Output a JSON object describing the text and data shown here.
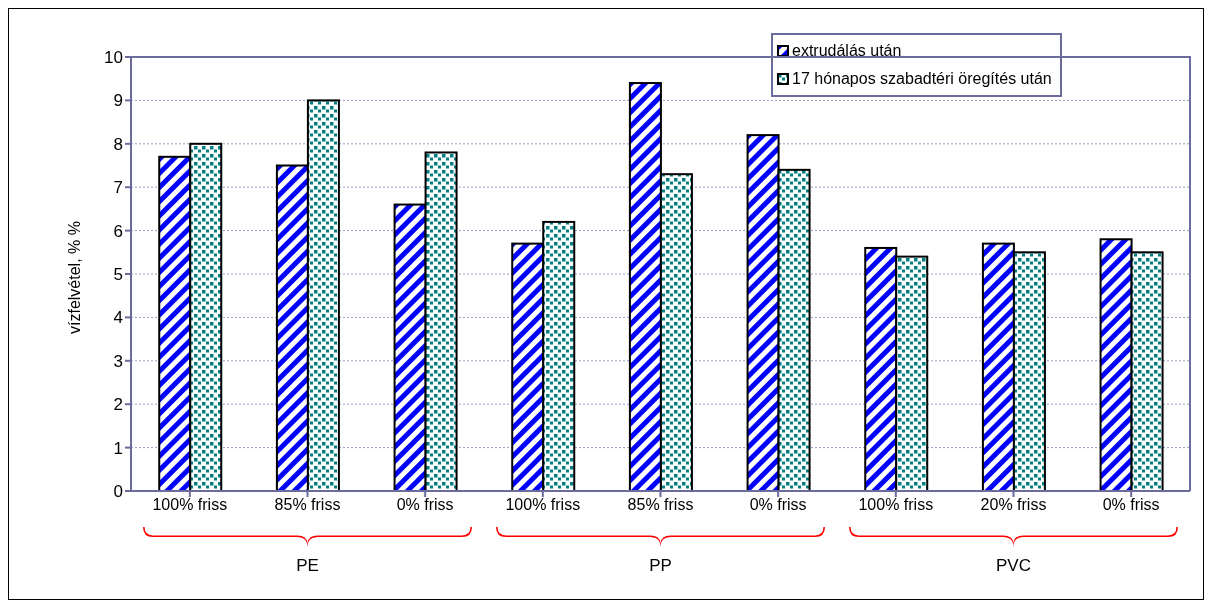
{
  "chart_data": {
    "type": "bar",
    "ylabel": "vízfelvétel, % %",
    "categories": [
      "100% friss",
      "85% friss",
      "0% friss",
      "100% friss",
      "85% friss",
      "0% friss",
      "100% friss",
      "20% friss",
      "0% friss"
    ],
    "series": [
      {
        "name": "extrudálás után",
        "color": "#0000ff",
        "values": [
          7.7,
          7.5,
          6.6,
          5.7,
          9.4,
          8.2,
          5.6,
          5.7,
          5.8
        ]
      },
      {
        "name": "17 hónapos szabadtéri öregítés után",
        "color": "#008080",
        "values": [
          8.0,
          9.0,
          7.8,
          6.2,
          7.3,
          7.4,
          5.4,
          5.5,
          5.5
        ]
      }
    ],
    "annotations": [
      "PE",
      "PP",
      "PVC"
    ],
    "ylim": [
      0,
      10
    ],
    "yticks": [
      0,
      1,
      2,
      3,
      4,
      5,
      6,
      7,
      8,
      9,
      10
    ],
    "grid": "y",
    "legend": "top right"
  }
}
